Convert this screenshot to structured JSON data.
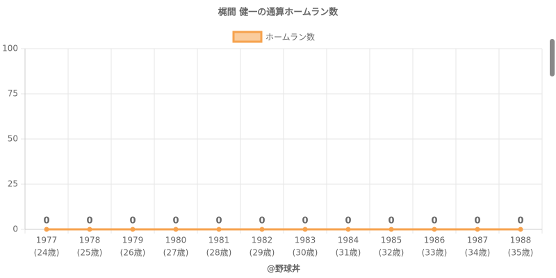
{
  "chart_data": {
    "type": "line",
    "title": "梶間 健一の通算ホームラン数",
    "categories": [
      "1977",
      "1978",
      "1979",
      "1980",
      "1981",
      "1982",
      "1983",
      "1984",
      "1985",
      "1986",
      "1987",
      "1988"
    ],
    "age_labels": [
      "(24歳)",
      "(25歳)",
      "(26歳)",
      "(27歳)",
      "(28歳)",
      "(29歳)",
      "(30歳)",
      "(31歳)",
      "(32歳)",
      "(33歳)",
      "(34歳)",
      "(35歳)"
    ],
    "series": [
      {
        "name": "ホームラン数",
        "color": "#f6a24d",
        "values": [
          0,
          0,
          0,
          0,
          0,
          0,
          0,
          0,
          0,
          0,
          0,
          0
        ]
      }
    ],
    "ylim": [
      0,
      100
    ],
    "yticks": [
      0,
      25,
      50,
      75,
      100
    ],
    "grid": true,
    "legend": "top",
    "footer": "@野球丼"
  }
}
